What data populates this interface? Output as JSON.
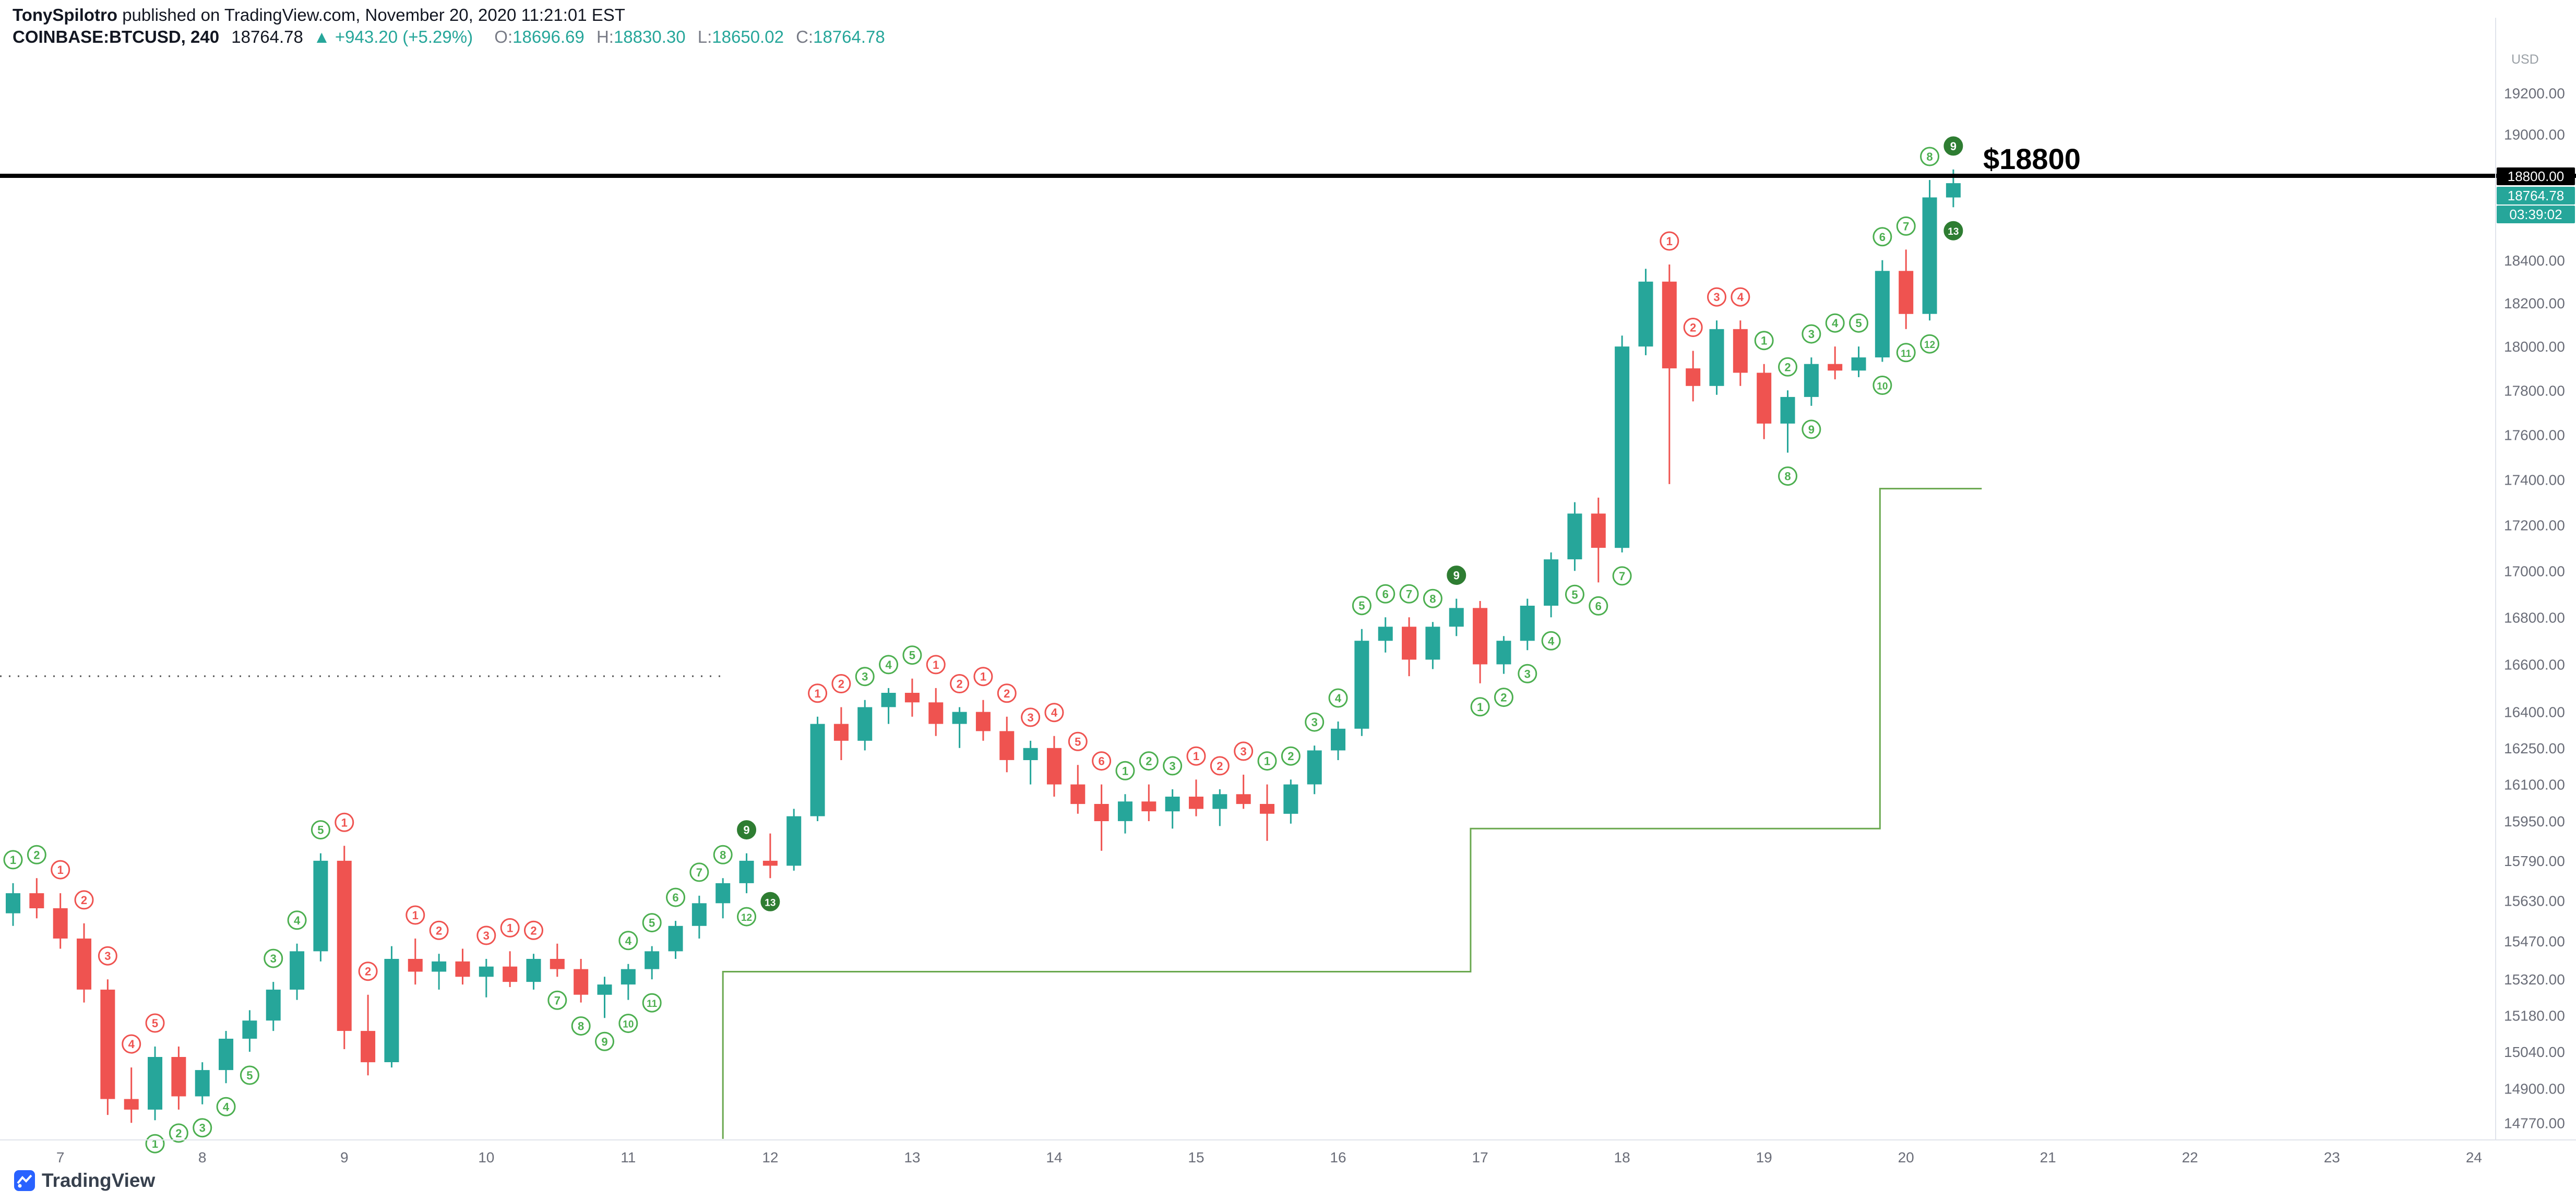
{
  "header": {
    "byline_author": "TonySpilotro",
    "byline_rest": " published on TradingView.com, November 20, 2020 11:21:01 EST",
    "symbol": "COINBASE:BTCUSD, 240",
    "last_price": "18764.78",
    "up_arrow": "▲",
    "change": "+943.20 (+5.29%)",
    "ohlc": [
      {
        "label": "O:",
        "value": "18696.69"
      },
      {
        "label": "H:",
        "value": "18830.30"
      },
      {
        "label": "L:",
        "value": "18650.02"
      },
      {
        "label": "C:",
        "value": "18764.78"
      }
    ]
  },
  "annotation_label": "$18800",
  "price_axis": {
    "corner_label": "USD",
    "tags": {
      "level": "18800.00",
      "last": "18764.78",
      "countdown": "03:39:02"
    },
    "ticks": [
      19200,
      19000,
      18400,
      18200,
      18000,
      17800,
      17600,
      17400,
      17200,
      17000,
      16800,
      16600,
      16400,
      16250,
      16100,
      15950,
      15790,
      15630,
      15470,
      15320,
      15180,
      15040,
      14900,
      14770
    ]
  },
  "time_axis": {
    "days": [
      {
        "label": "7",
        "index": 2
      },
      {
        "label": "8",
        "index": 8
      },
      {
        "label": "9",
        "index": 14
      },
      {
        "label": "10",
        "index": 20
      },
      {
        "label": "11",
        "index": 26
      },
      {
        "label": "12",
        "index": 32
      },
      {
        "label": "13",
        "index": 38
      },
      {
        "label": "14",
        "index": 44
      },
      {
        "label": "15",
        "index": 50
      },
      {
        "label": "16",
        "index": 56
      },
      {
        "label": "17",
        "index": 62
      },
      {
        "label": "18",
        "index": 68
      },
      {
        "label": "19",
        "index": 74
      },
      {
        "label": "20",
        "index": 80
      },
      {
        "label": "21",
        "index": 86
      },
      {
        "label": "22",
        "index": 92
      },
      {
        "label": "23",
        "index": 98
      },
      {
        "label": "24",
        "index": 104
      }
    ]
  },
  "footer": {
    "logo_text": "TradingView"
  },
  "chart_data": {
    "type": "candlestick",
    "symbol": "COINBASE:BTCUSD",
    "interval": "240",
    "price_scale": "log",
    "y_domain": [
      14706,
      19417
    ],
    "bar_spacing": 45.34,
    "level_line": {
      "price": 18800,
      "color": "#000000",
      "label": "$18800"
    },
    "dotted_line": {
      "price": 16550,
      "from_index": -1,
      "to_index": 30
    },
    "stop_line": {
      "points": [
        [
          30,
          14710
        ],
        [
          30,
          15350
        ],
        [
          61.6,
          15350
        ],
        [
          61.6,
          15920
        ],
        [
          78.9,
          15920
        ],
        [
          78.9,
          17360
        ],
        [
          83.2,
          17360
        ]
      ]
    },
    "colors": {
      "up": "#26a69a",
      "down": "#ef5350",
      "circle_up": "#4caf50",
      "circle_up_filled": "#2e7d32",
      "circle_down": "#ef5350",
      "stop_line": "#6aa84f",
      "dotted": "#555555",
      "axis_text": "#6a6d78",
      "separator": "#e0e3eb"
    },
    "candles": [
      [
        15580,
        15700,
        15530,
        15660
      ],
      [
        15660,
        15720,
        15560,
        15600
      ],
      [
        15600,
        15660,
        15440,
        15480
      ],
      [
        15480,
        15540,
        15230,
        15280
      ],
      [
        15280,
        15320,
        14800,
        14860
      ],
      [
        14860,
        14980,
        14770,
        14820
      ],
      [
        14820,
        15060,
        14780,
        15020
      ],
      [
        15020,
        15060,
        14820,
        14870
      ],
      [
        14870,
        15000,
        14840,
        14970
      ],
      [
        14970,
        15120,
        14920,
        15090
      ],
      [
        15090,
        15200,
        15040,
        15160
      ],
      [
        15160,
        15310,
        15120,
        15280
      ],
      [
        15280,
        15460,
        15240,
        15430
      ],
      [
        15430,
        15820,
        15390,
        15790
      ],
      [
        15790,
        15850,
        15050,
        15120
      ],
      [
        15120,
        15260,
        14950,
        15000
      ],
      [
        15000,
        15450,
        14980,
        15400
      ],
      [
        15400,
        15480,
        15300,
        15350
      ],
      [
        15350,
        15420,
        15280,
        15390
      ],
      [
        15390,
        15440,
        15300,
        15330
      ],
      [
        15330,
        15400,
        15250,
        15370
      ],
      [
        15370,
        15430,
        15290,
        15310
      ],
      [
        15310,
        15420,
        15280,
        15400
      ],
      [
        15400,
        15460,
        15330,
        15360
      ],
      [
        15360,
        15400,
        15230,
        15260
      ],
      [
        15260,
        15330,
        15170,
        15300
      ],
      [
        15300,
        15380,
        15240,
        15360
      ],
      [
        15360,
        15450,
        15320,
        15430
      ],
      [
        15430,
        15550,
        15400,
        15530
      ],
      [
        15530,
        15650,
        15480,
        15620
      ],
      [
        15620,
        15720,
        15560,
        15700
      ],
      [
        15700,
        15820,
        15660,
        15790
      ],
      [
        15790,
        15900,
        15720,
        15770
      ],
      [
        15770,
        16000,
        15750,
        15970
      ],
      [
        15970,
        16380,
        15950,
        16350
      ],
      [
        16350,
        16420,
        16200,
        16280
      ],
      [
        16280,
        16450,
        16240,
        16420
      ],
      [
        16420,
        16500,
        16350,
        16480
      ],
      [
        16480,
        16540,
        16380,
        16440
      ],
      [
        16440,
        16500,
        16300,
        16350
      ],
      [
        16350,
        16420,
        16250,
        16400
      ],
      [
        16400,
        16450,
        16280,
        16320
      ],
      [
        16320,
        16380,
        16150,
        16200
      ],
      [
        16200,
        16280,
        16100,
        16250
      ],
      [
        16250,
        16300,
        16050,
        16100
      ],
      [
        16100,
        16180,
        15980,
        16020
      ],
      [
        16020,
        16100,
        15830,
        15950
      ],
      [
        15950,
        16060,
        15900,
        16030
      ],
      [
        16030,
        16100,
        15950,
        15990
      ],
      [
        15990,
        16080,
        15920,
        16050
      ],
      [
        16050,
        16120,
        15970,
        16000
      ],
      [
        16000,
        16080,
        15930,
        16060
      ],
      [
        16060,
        16140,
        16000,
        16020
      ],
      [
        16020,
        16100,
        15870,
        15980
      ],
      [
        15980,
        16120,
        15940,
        16100
      ],
      [
        16100,
        16260,
        16060,
        16240
      ],
      [
        16240,
        16360,
        16200,
        16330
      ],
      [
        16330,
        16750,
        16300,
        16700
      ],
      [
        16700,
        16800,
        16650,
        16760
      ],
      [
        16760,
        16800,
        16550,
        16620
      ],
      [
        16620,
        16780,
        16580,
        16760
      ],
      [
        16760,
        16880,
        16720,
        16840
      ],
      [
        16840,
        16870,
        16520,
        16600
      ],
      [
        16600,
        16720,
        16560,
        16700
      ],
      [
        16700,
        16880,
        16660,
        16850
      ],
      [
        16850,
        17080,
        16800,
        17050
      ],
      [
        17050,
        17300,
        17000,
        17250
      ],
      [
        17250,
        17320,
        16950,
        17100
      ],
      [
        17100,
        18050,
        17080,
        18000
      ],
      [
        18000,
        18360,
        17960,
        18300
      ],
      [
        18300,
        18380,
        17380,
        17900
      ],
      [
        17900,
        17980,
        17750,
        17820
      ],
      [
        17820,
        18120,
        17780,
        18080
      ],
      [
        18080,
        18120,
        17820,
        17880
      ],
      [
        17880,
        17920,
        17580,
        17650
      ],
      [
        17650,
        17800,
        17520,
        17770
      ],
      [
        17770,
        17950,
        17730,
        17920
      ],
      [
        17920,
        18000,
        17850,
        17890
      ],
      [
        17890,
        18000,
        17860,
        17950
      ],
      [
        17950,
        18400,
        17930,
        18350
      ],
      [
        18350,
        18450,
        18080,
        18150
      ],
      [
        18150,
        18780,
        18120,
        18696.69
      ],
      [
        18696.69,
        18830.3,
        18650.02,
        18764.78
      ]
    ],
    "td_annotations": [
      {
        "i": 0,
        "p": "a",
        "v": 1,
        "c": "g"
      },
      {
        "i": 1,
        "p": "a",
        "v": 2,
        "c": "g"
      },
      {
        "i": 2,
        "p": "a",
        "v": 1,
        "c": "r"
      },
      {
        "i": 3,
        "p": "a",
        "v": 2,
        "c": "r"
      },
      {
        "i": 4,
        "p": "a",
        "v": 3,
        "c": "r"
      },
      {
        "i": 5,
        "p": "a",
        "v": 4,
        "c": "r"
      },
      {
        "i": 6,
        "p": "a",
        "v": 5,
        "c": "r"
      },
      {
        "i": 6,
        "p": "b",
        "v": 1,
        "c": "g"
      },
      {
        "i": 7,
        "p": "b",
        "v": 2,
        "c": "g"
      },
      {
        "i": 8,
        "p": "b",
        "v": 3,
        "c": "g"
      },
      {
        "i": 9,
        "p": "b",
        "v": 4,
        "c": "g"
      },
      {
        "i": 10,
        "p": "b",
        "v": 5,
        "c": "g"
      },
      {
        "i": 11,
        "p": "a",
        "v": 3,
        "c": "g"
      },
      {
        "i": 12,
        "p": "a",
        "v": 4,
        "c": "g"
      },
      {
        "i": 13,
        "p": "a",
        "v": 5,
        "c": "g"
      },
      {
        "i": 14,
        "p": "a",
        "v": 1,
        "c": "r"
      },
      {
        "i": 15,
        "p": "a",
        "v": 2,
        "c": "r"
      },
      {
        "i": 17,
        "p": "a",
        "v": 1,
        "c": "r"
      },
      {
        "i": 18,
        "p": "a",
        "v": 2,
        "c": "r"
      },
      {
        "i": 20,
        "p": "a",
        "v": 3,
        "c": "r"
      },
      {
        "i": 21,
        "p": "a",
        "v": 1,
        "c": "r"
      },
      {
        "i": 22,
        "p": "a",
        "v": 2,
        "c": "r"
      },
      {
        "i": 23,
        "p": "b",
        "v": 7,
        "c": "g"
      },
      {
        "i": 24,
        "p": "b",
        "v": 8,
        "c": "g"
      },
      {
        "i": 25,
        "p": "b",
        "v": 9,
        "c": "g"
      },
      {
        "i": 26,
        "p": "b",
        "v": 10,
        "c": "g"
      },
      {
        "i": 27,
        "p": "b",
        "v": 11,
        "c": "g"
      },
      {
        "i": 26,
        "p": "a",
        "v": 4,
        "c": "g"
      },
      {
        "i": 27,
        "p": "a",
        "v": 5,
        "c": "g"
      },
      {
        "i": 28,
        "p": "a",
        "v": 6,
        "c": "g"
      },
      {
        "i": 29,
        "p": "a",
        "v": 7,
        "c": "g"
      },
      {
        "i": 30,
        "p": "a",
        "v": 8,
        "c": "g"
      },
      {
        "i": 31,
        "p": "a",
        "v": 9,
        "c": "g",
        "f": 1
      },
      {
        "i": 31,
        "p": "b",
        "v": 12,
        "c": "g"
      },
      {
        "i": 32,
        "p": "b",
        "v": 13,
        "c": "g",
        "f": 1
      },
      {
        "i": 34,
        "p": "a",
        "v": 1,
        "c": "r"
      },
      {
        "i": 35,
        "p": "a",
        "v": 2,
        "c": "r"
      },
      {
        "i": 36,
        "p": "a",
        "v": 3,
        "c": "g"
      },
      {
        "i": 37,
        "p": "a",
        "v": 4,
        "c": "g"
      },
      {
        "i": 38,
        "p": "a",
        "v": 5,
        "c": "g"
      },
      {
        "i": 39,
        "p": "a",
        "v": 1,
        "c": "r"
      },
      {
        "i": 40,
        "p": "a",
        "v": 2,
        "c": "r"
      },
      {
        "i": 41,
        "p": "a",
        "v": 1,
        "c": "r"
      },
      {
        "i": 42,
        "p": "a",
        "v": 2,
        "c": "r"
      },
      {
        "i": 43,
        "p": "a",
        "v": 3,
        "c": "r"
      },
      {
        "i": 44,
        "p": "a",
        "v": 4,
        "c": "r"
      },
      {
        "i": 45,
        "p": "a",
        "v": 5,
        "c": "r"
      },
      {
        "i": 46,
        "p": "a",
        "v": 6,
        "c": "r"
      },
      {
        "i": 47,
        "p": "a",
        "v": 1,
        "c": "g"
      },
      {
        "i": 48,
        "p": "a",
        "v": 2,
        "c": "g"
      },
      {
        "i": 49,
        "p": "a",
        "v": 3,
        "c": "g"
      },
      {
        "i": 50,
        "p": "a",
        "v": 1,
        "c": "r"
      },
      {
        "i": 51,
        "p": "a",
        "v": 2,
        "c": "r"
      },
      {
        "i": 52,
        "p": "a",
        "v": 3,
        "c": "r"
      },
      {
        "i": 53,
        "p": "a",
        "v": 1,
        "c": "g"
      },
      {
        "i": 54,
        "p": "a",
        "v": 2,
        "c": "g"
      },
      {
        "i": 55,
        "p": "a",
        "v": 3,
        "c": "g"
      },
      {
        "i": 56,
        "p": "a",
        "v": 4,
        "c": "g"
      },
      {
        "i": 57,
        "p": "a",
        "v": 5,
        "c": "g"
      },
      {
        "i": 58,
        "p": "a",
        "v": 6,
        "c": "g"
      },
      {
        "i": 59,
        "p": "a",
        "v": 7,
        "c": "g"
      },
      {
        "i": 60,
        "p": "a",
        "v": 8,
        "c": "g"
      },
      {
        "i": 61,
        "p": "a",
        "v": 9,
        "c": "g",
        "f": 1
      },
      {
        "i": 62,
        "p": "b",
        "v": 1,
        "c": "g"
      },
      {
        "i": 63,
        "p": "b",
        "v": 2,
        "c": "g"
      },
      {
        "i": 64,
        "p": "b",
        "v": 3,
        "c": "g"
      },
      {
        "i": 65,
        "p": "b",
        "v": 4,
        "c": "g"
      },
      {
        "i": 66,
        "p": "b",
        "v": 5,
        "c": "g"
      },
      {
        "i": 67,
        "p": "b",
        "v": 6,
        "c": "g"
      },
      {
        "i": 68,
        "p": "b",
        "v": 7,
        "c": "g"
      },
      {
        "i": 70,
        "p": "a",
        "v": 1,
        "c": "r"
      },
      {
        "i": 71,
        "p": "a",
        "v": 2,
        "c": "r"
      },
      {
        "i": 72,
        "p": "a",
        "v": 3,
        "c": "r"
      },
      {
        "i": 73,
        "p": "a",
        "v": 4,
        "c": "r"
      },
      {
        "i": 74,
        "p": "a",
        "v": 1,
        "c": "g"
      },
      {
        "i": 75,
        "p": "a",
        "v": 2,
        "c": "g"
      },
      {
        "i": 76,
        "p": "a",
        "v": 3,
        "c": "g"
      },
      {
        "i": 77,
        "p": "a",
        "v": 4,
        "c": "g"
      },
      {
        "i": 78,
        "p": "a",
        "v": 5,
        "c": "g"
      },
      {
        "i": 79,
        "p": "a",
        "v": 6,
        "c": "g"
      },
      {
        "i": 80,
        "p": "a",
        "v": 7,
        "c": "g"
      },
      {
        "i": 81,
        "p": "a",
        "v": 8,
        "c": "g"
      },
      {
        "i": 82,
        "p": "a",
        "v": 9,
        "c": "g",
        "f": 1
      },
      {
        "i": 75,
        "p": "b",
        "v": 8,
        "c": "g"
      },
      {
        "i": 76,
        "p": "b",
        "v": 9,
        "c": "g"
      },
      {
        "i": 79,
        "p": "b",
        "v": 10,
        "c": "g"
      },
      {
        "i": 80,
        "p": "b",
        "v": 11,
        "c": "g"
      },
      {
        "i": 81,
        "p": "b",
        "v": 12,
        "c": "g"
      },
      {
        "i": 82,
        "p": "b",
        "v": 13,
        "c": "g",
        "f": 1
      }
    ]
  }
}
